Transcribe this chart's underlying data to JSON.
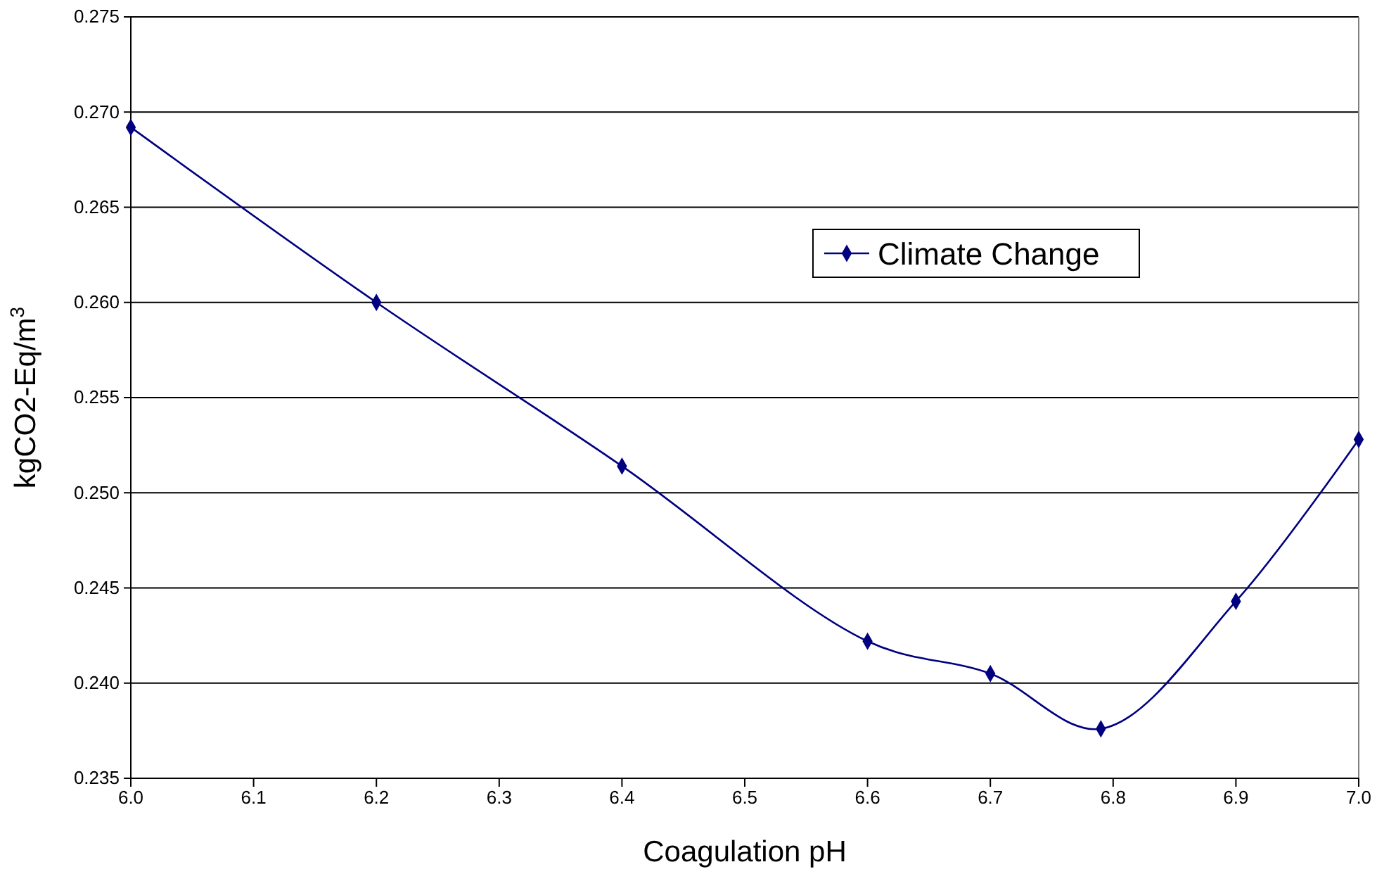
{
  "chart_data": {
    "type": "line",
    "xlabel": "Coagulation pH",
    "ylabel": "kgCO2-Eq/m$^{3}$",
    "x": [
      6.0,
      6.2,
      6.4,
      6.6,
      6.7,
      6.79,
      6.9,
      7.0
    ],
    "series": [
      {
        "name": "Climate Change",
        "color": "#000080",
        "values": [
          0.2692,
          0.26,
          0.2514,
          0.2422,
          0.2405,
          0.2376,
          0.2443,
          0.2528
        ]
      }
    ],
    "xlim": [
      6.0,
      7.0
    ],
    "xticks": [
      {
        "value": 6,
        "label": "6.0"
      },
      6.1,
      6.2,
      6.3,
      6.4,
      6.5,
      6.6,
      6.7,
      6.8,
      6.9,
      {
        "value": 7,
        "label": "7.0"
      }
    ],
    "ylim": [
      0.235,
      0.275
    ],
    "yticks": [
      0.235,
      {
        "value": 0.24,
        "label": "0.240"
      },
      0.245,
      {
        "value": 0.25,
        "label": "0.250"
      },
      0.255,
      {
        "value": 0.26,
        "label": "0.260"
      },
      0.265,
      {
        "value": 0.27,
        "label": "0.270"
      },
      0.275
    ],
    "grid": "y",
    "legend": "top right",
    "marker": "diamond",
    "line_style": "solid"
  }
}
